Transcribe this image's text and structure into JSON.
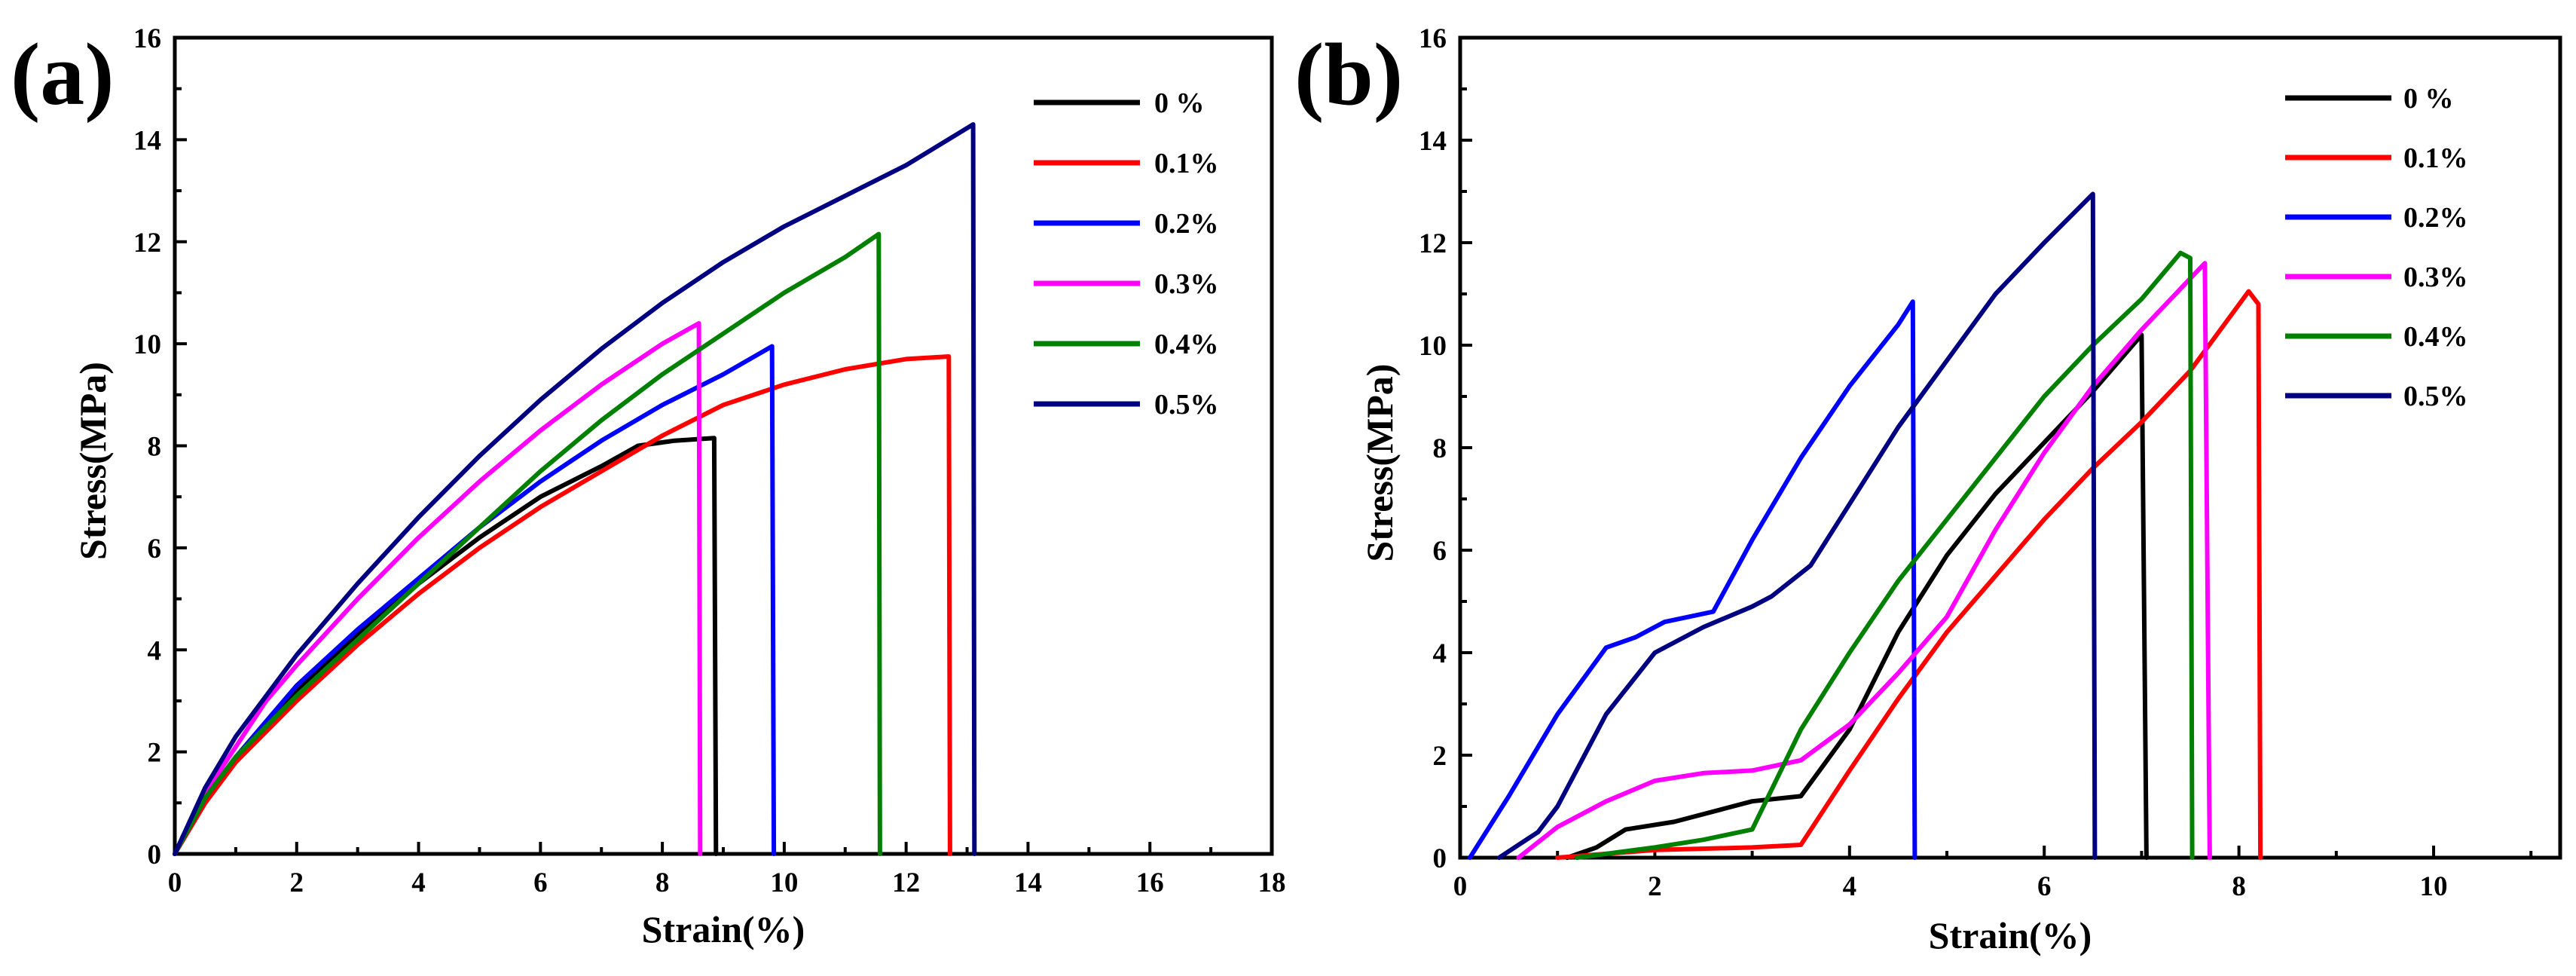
{
  "chart_data": [
    {
      "type": "line",
      "panel_label": "(a)",
      "xlabel": "Strain(%)",
      "ylabel": "Stress(MPa)",
      "xlim": [
        0,
        18
      ],
      "ylim": [
        0,
        16
      ],
      "xticks": [
        "0",
        "2",
        "4",
        "6",
        "8",
        "10",
        "12",
        "14",
        "16",
        "18"
      ],
      "yticks": [
        "0",
        "2",
        "4",
        "6",
        "8",
        "10",
        "12",
        "14",
        "16"
      ],
      "legend_position": "top-right",
      "series": [
        {
          "name": "0  %",
          "color": "#000000",
          "points": [
            [
              0,
              0
            ],
            [
              0.5,
              1.1
            ],
            [
              1,
              1.9
            ],
            [
              2,
              3.2
            ],
            [
              3,
              4.3
            ],
            [
              4,
              5.3
            ],
            [
              5,
              6.2
            ],
            [
              6,
              7
            ],
            [
              7,
              7.6
            ],
            [
              7.6,
              8
            ],
            [
              8.2,
              8.1
            ],
            [
              8.85,
              8.15
            ],
            [
              8.88,
              0
            ]
          ]
        },
        {
          "name": "0.1%",
          "color": "#ff0000",
          "points": [
            [
              0,
              0
            ],
            [
              0.5,
              1
            ],
            [
              1,
              1.8
            ],
            [
              2,
              3
            ],
            [
              3,
              4.1
            ],
            [
              4,
              5.1
            ],
            [
              5,
              6
            ],
            [
              6,
              6.8
            ],
            [
              7,
              7.5
            ],
            [
              8,
              8.2
            ],
            [
              9,
              8.8
            ],
            [
              10,
              9.2
            ],
            [
              11,
              9.5
            ],
            [
              12,
              9.7
            ],
            [
              12.7,
              9.75
            ],
            [
              12.72,
              0
            ]
          ]
        },
        {
          "name": "0.2%",
          "color": "#0000ff",
          "points": [
            [
              0,
              0
            ],
            [
              0.5,
              1.1
            ],
            [
              1,
              1.9
            ],
            [
              2,
              3.3
            ],
            [
              3,
              4.4
            ],
            [
              4,
              5.4
            ],
            [
              5,
              6.4
            ],
            [
              6,
              7.3
            ],
            [
              7,
              8.1
            ],
            [
              8,
              8.8
            ],
            [
              9,
              9.4
            ],
            [
              9.8,
              9.95
            ],
            [
              9.83,
              0
            ]
          ]
        },
        {
          "name": "0.3%",
          "color": "#ff00ff",
          "points": [
            [
              0,
              0
            ],
            [
              0.5,
              1.2
            ],
            [
              1,
              2.1
            ],
            [
              1.5,
              3
            ],
            [
              2,
              3.7
            ],
            [
              3,
              5
            ],
            [
              4,
              6.2
            ],
            [
              5,
              7.3
            ],
            [
              6,
              8.3
            ],
            [
              7,
              9.2
            ],
            [
              8,
              10
            ],
            [
              8.6,
              10.4
            ],
            [
              8.62,
              0
            ]
          ]
        },
        {
          "name": "0.4%",
          "color": "#008000",
          "points": [
            [
              0,
              0
            ],
            [
              0.5,
              1.1
            ],
            [
              1,
              1.9
            ],
            [
              2,
              3.1
            ],
            [
              3,
              4.2
            ],
            [
              4,
              5.3
            ],
            [
              5,
              6.4
            ],
            [
              6,
              7.5
            ],
            [
              7,
              8.5
            ],
            [
              8,
              9.4
            ],
            [
              9,
              10.2
            ],
            [
              10,
              11
            ],
            [
              11,
              11.7
            ],
            [
              11.55,
              12.15
            ],
            [
              11.57,
              0
            ]
          ]
        },
        {
          "name": "0.5%",
          "color": "#000080",
          "points": [
            [
              0,
              0
            ],
            [
              0.5,
              1.3
            ],
            [
              1,
              2.3
            ],
            [
              2,
              3.9
            ],
            [
              3,
              5.3
            ],
            [
              4,
              6.6
            ],
            [
              5,
              7.8
            ],
            [
              6,
              8.9
            ],
            [
              7,
              9.9
            ],
            [
              8,
              10.8
            ],
            [
              9,
              11.6
            ],
            [
              10,
              12.3
            ],
            [
              11,
              12.9
            ],
            [
              12,
              13.5
            ],
            [
              13.1,
              14.3
            ],
            [
              13.12,
              0
            ]
          ]
        }
      ]
    },
    {
      "type": "line",
      "panel_label": "(b)",
      "xlabel": "Strain(%)",
      "ylabel": "Stress(MPa)",
      "xlim": [
        0,
        11.3
      ],
      "ylim": [
        0,
        16
      ],
      "xticks": [
        "0",
        "2",
        "4",
        "6",
        "8",
        "10"
      ],
      "yticks": [
        "0",
        "2",
        "4",
        "6",
        "8",
        "10",
        "12",
        "14",
        "16"
      ],
      "legend_position": "top-right",
      "series": [
        {
          "name": "0  %",
          "color": "#000000",
          "points": [
            [
              1.1,
              0
            ],
            [
              1.4,
              0.2
            ],
            [
              1.7,
              0.55
            ],
            [
              2.2,
              0.7
            ],
            [
              2.7,
              0.95
            ],
            [
              3,
              1.1
            ],
            [
              3.5,
              1.2
            ],
            [
              4,
              2.5
            ],
            [
              4.5,
              4.4
            ],
            [
              5,
              5.9
            ],
            [
              5.5,
              7.1
            ],
            [
              6,
              8.1
            ],
            [
              6.5,
              9.1
            ],
            [
              7,
              10.2
            ],
            [
              7.05,
              0
            ]
          ]
        },
        {
          "name": "0.1%",
          "color": "#ff0000",
          "points": [
            [
              1,
              0
            ],
            [
              2,
              0.15
            ],
            [
              3,
              0.2
            ],
            [
              3.5,
              0.25
            ],
            [
              4,
              1.7
            ],
            [
              4.5,
              3.1
            ],
            [
              5,
              4.4
            ],
            [
              5.5,
              5.5
            ],
            [
              6,
              6.6
            ],
            [
              6.5,
              7.6
            ],
            [
              7,
              8.5
            ],
            [
              7.5,
              9.5
            ],
            [
              8.1,
              11.05
            ],
            [
              8.2,
              10.8
            ],
            [
              8.22,
              0
            ]
          ]
        },
        {
          "name": "0.2%",
          "color": "#0000ff",
          "points": [
            [
              0.1,
              0
            ],
            [
              0.5,
              1.2
            ],
            [
              1,
              2.8
            ],
            [
              1.5,
              4.1
            ],
            [
              1.8,
              4.3
            ],
            [
              2.1,
              4.6
            ],
            [
              2.6,
              4.8
            ],
            [
              2.8,
              5.5
            ],
            [
              3,
              6.2
            ],
            [
              3.5,
              7.8
            ],
            [
              4,
              9.2
            ],
            [
              4.5,
              10.4
            ],
            [
              4.65,
              10.85
            ],
            [
              4.67,
              0
            ]
          ]
        },
        {
          "name": "0.3%",
          "color": "#ff00ff",
          "points": [
            [
              0.6,
              0
            ],
            [
              1,
              0.6
            ],
            [
              1.5,
              1.1
            ],
            [
              2,
              1.5
            ],
            [
              2.5,
              1.65
            ],
            [
              3,
              1.7
            ],
            [
              3.5,
              1.9
            ],
            [
              4,
              2.6
            ],
            [
              4.5,
              3.6
            ],
            [
              5,
              4.7
            ],
            [
              5.5,
              6.4
            ],
            [
              6,
              7.9
            ],
            [
              6.5,
              9.2
            ],
            [
              7,
              10.3
            ],
            [
              7.5,
              11.3
            ],
            [
              7.65,
              11.6
            ],
            [
              7.7,
              0
            ]
          ]
        },
        {
          "name": "0.4%",
          "color": "#008000",
          "points": [
            [
              1.2,
              0
            ],
            [
              2,
              0.2
            ],
            [
              2.5,
              0.35
            ],
            [
              3,
              0.55
            ],
            [
              3.5,
              2.5
            ],
            [
              4,
              4
            ],
            [
              4.5,
              5.4
            ],
            [
              5,
              6.6
            ],
            [
              5.5,
              7.8
            ],
            [
              6,
              9
            ],
            [
              6.5,
              10
            ],
            [
              7,
              10.9
            ],
            [
              7.4,
              11.8
            ],
            [
              7.5,
              11.7
            ],
            [
              7.52,
              0
            ]
          ]
        },
        {
          "name": "0.5%",
          "color": "#000080",
          "points": [
            [
              0.4,
              0
            ],
            [
              0.8,
              0.5
            ],
            [
              1,
              1
            ],
            [
              1.5,
              2.8
            ],
            [
              2,
              4
            ],
            [
              2.5,
              4.5
            ],
            [
              3,
              4.9
            ],
            [
              3.2,
              5.1
            ],
            [
              3.6,
              5.7
            ],
            [
              4,
              6.9
            ],
            [
              4.5,
              8.4
            ],
            [
              5,
              9.7
            ],
            [
              5.5,
              11
            ],
            [
              6,
              12
            ],
            [
              6.5,
              12.95
            ],
            [
              6.52,
              0
            ]
          ]
        }
      ]
    }
  ]
}
